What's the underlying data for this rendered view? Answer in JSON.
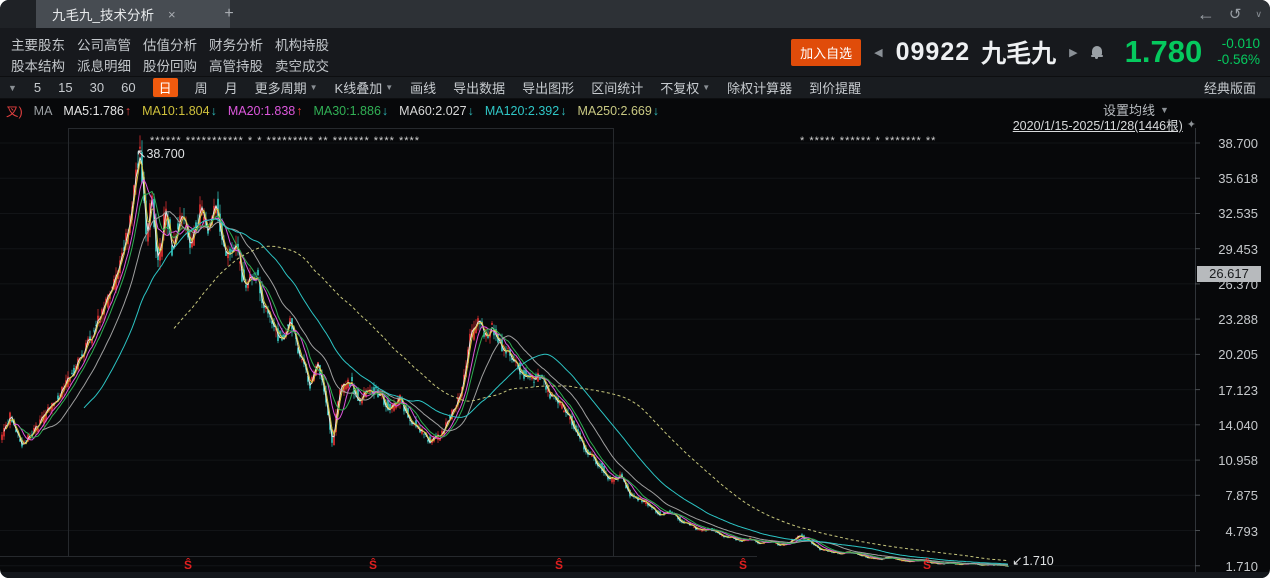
{
  "window": {
    "tab_title": "九毛九_技术分析",
    "close_icon": "×",
    "new_tab_icon": "+",
    "back_icon": "←",
    "undo_icon": "↺",
    "chevron_icon": "∨"
  },
  "menu": {
    "row1": [
      "主要股东",
      "公司高管",
      "估值分析",
      "财务分析",
      "机构持股"
    ],
    "row2": [
      "股本结构",
      "派息明细",
      "股份回购",
      "高管持股",
      "卖空成交"
    ]
  },
  "quote": {
    "add_watchlist": "加入自选",
    "prev_icon": "◀",
    "code": "09922",
    "name": "九毛九",
    "next_icon": "▶",
    "price": "1.780",
    "change": "-0.010",
    "change_pct": "-0.56%",
    "up_down_color": "#05c95e"
  },
  "toolbar": {
    "lead_icon": "▼",
    "items": [
      {
        "label": "5"
      },
      {
        "label": "15"
      },
      {
        "label": "30"
      },
      {
        "label": "60"
      },
      {
        "label": "日",
        "active": true
      },
      {
        "label": "周"
      },
      {
        "label": "月"
      },
      {
        "label": "更多周期",
        "dropdown": true
      },
      {
        "label": "K线叠加",
        "dropdown": true
      },
      {
        "label": "画线"
      },
      {
        "label": "导出数据"
      },
      {
        "label": "导出图形"
      },
      {
        "label": "区间统计"
      },
      {
        "label": "不复权",
        "dropdown": true
      },
      {
        "label": "除权计算器"
      },
      {
        "label": "到价提醒"
      }
    ],
    "dropdown_glyph": "▼",
    "right_label": "经典版面",
    "active_bg": "#ef5a0e"
  },
  "indicators": {
    "prefix": "叉)",
    "group": "MA",
    "up_glyph": "↑",
    "down_glyph": "↓",
    "items": [
      {
        "text": "MA5:1.786",
        "dir": "up",
        "color": "#e6e6e6"
      },
      {
        "text": "MA10:1.804",
        "dir": "down",
        "color": "#cfc13c"
      },
      {
        "text": "MA20:1.838",
        "dir": "up",
        "color": "#dc57dc"
      },
      {
        "text": "MA30:1.886",
        "dir": "down",
        "color": "#31b055"
      },
      {
        "text": "MA60:2.027",
        "dir": "down",
        "color": "#d8d8d8"
      },
      {
        "text": "MA120:2.392",
        "dir": "down",
        "color": "#2fc6c6"
      },
      {
        "text": "MA250:2.669",
        "dir": "down",
        "color": "#c8c882"
      }
    ]
  },
  "chart": {
    "settings_label": "设置均线",
    "date_range": "2020/1/15-2025/11/28(1446根)",
    "pin_icon": "✦",
    "peak_annotation": "↖38.700",
    "last_annotation": "↙1.710",
    "axis_badge": "26.617",
    "axis_labels": [
      "38.700",
      "35.618",
      "32.535",
      "29.453",
      "26.370",
      "23.288",
      "20.205",
      "17.123",
      "14.040",
      "10.958",
      "7.875",
      "4.793",
      "1.710"
    ],
    "event_glyph": "Ŝ",
    "event_markers": [
      {
        "x": 188
      },
      {
        "x": 373
      },
      {
        "x": 559
      },
      {
        "x": 743
      },
      {
        "x": 927
      }
    ],
    "masked_annotations": [
      {
        "x": 150,
        "text": "****** *********** * * ********* ** ******* **** ****"
      },
      {
        "x": 800,
        "text": "* ***** ****** * ******* **"
      }
    ]
  },
  "chart_data": {
    "type": "candlestick",
    "symbol": "09922 九毛九",
    "period": "日",
    "date_range": "2020/1/15-2025/11/28",
    "bars": 1446,
    "ylim": [
      1.71,
      38.7
    ],
    "y_ticks": [
      38.7,
      35.618,
      32.535,
      29.453,
      26.37,
      23.288,
      20.205,
      17.123,
      14.04,
      10.958,
      7.875,
      4.793,
      1.71
    ],
    "peak_price": 38.7,
    "last_price": 1.71,
    "ma": {
      "MA5": 1.786,
      "MA10": 1.804,
      "MA20": 1.838,
      "MA30": 1.886,
      "MA60": 2.027,
      "MA120": 2.392,
      "MA250": 2.669
    },
    "ma_lines": [
      {
        "name": "MA5",
        "window": 5,
        "color": "#e8e8e8"
      },
      {
        "name": "MA10",
        "window": 10,
        "color": "#d2c43c"
      },
      {
        "name": "MA20",
        "window": 20,
        "color": "#dd55dd"
      },
      {
        "name": "MA30",
        "window": 30,
        "color": "#2fae52"
      },
      {
        "name": "MA60",
        "window": 60,
        "color": "#9f9f9f"
      },
      {
        "name": "MA120",
        "window": 120,
        "color": "#2cc4c4"
      },
      {
        "name": "MA250",
        "window": 250,
        "color": "#c6c67c",
        "dashed": true
      }
    ],
    "colors": {
      "up": "#ee3232",
      "down": "#39d1c9",
      "grid": "#26292d",
      "grid_faint": "#121417",
      "axis": "#303439",
      "tick": "#4a4e52"
    },
    "price_path": [
      [
        2,
        13.0
      ],
      [
        10,
        14.8
      ],
      [
        22,
        12.3
      ],
      [
        35,
        13.6
      ],
      [
        50,
        15.5
      ],
      [
        65,
        17.5
      ],
      [
        80,
        20.0
      ],
      [
        95,
        22.5
      ],
      [
        105,
        24.5
      ],
      [
        115,
        26.5
      ],
      [
        125,
        30.0
      ],
      [
        132,
        33.5
      ],
      [
        140,
        38.7
      ],
      [
        146,
        30.5
      ],
      [
        152,
        34.0
      ],
      [
        158,
        27.8
      ],
      [
        165,
        32.9
      ],
      [
        172,
        29.5
      ],
      [
        180,
        32.4
      ],
      [
        190,
        29.8
      ],
      [
        200,
        32.8
      ],
      [
        210,
        31.0
      ],
      [
        216,
        33.4
      ],
      [
        225,
        28.5
      ],
      [
        235,
        30.0
      ],
      [
        245,
        25.9
      ],
      [
        255,
        27.5
      ],
      [
        265,
        24.1
      ],
      [
        280,
        21.5
      ],
      [
        290,
        23.0
      ],
      [
        300,
        20.2
      ],
      [
        310,
        17.5
      ],
      [
        318,
        19.5
      ],
      [
        325,
        16.7
      ],
      [
        332,
        12.6
      ],
      [
        340,
        17.1
      ],
      [
        350,
        17.8
      ],
      [
        360,
        16.2
      ],
      [
        370,
        17.3
      ],
      [
        380,
        16.6
      ],
      [
        390,
        15.4
      ],
      [
        400,
        16.3
      ],
      [
        410,
        14.5
      ],
      [
        420,
        13.6
      ],
      [
        430,
        12.7
      ],
      [
        440,
        13.0
      ],
      [
        450,
        14.9
      ],
      [
        460,
        16.7
      ],
      [
        470,
        21.5
      ],
      [
        478,
        23.2
      ],
      [
        486,
        21.8
      ],
      [
        492,
        22.8
      ],
      [
        500,
        21.0
      ],
      [
        510,
        20.2
      ],
      [
        520,
        18.8
      ],
      [
        530,
        18.0
      ],
      [
        540,
        18.4
      ],
      [
        550,
        16.6
      ],
      [
        560,
        15.8
      ],
      [
        570,
        14.5
      ],
      [
        580,
        12.7
      ],
      [
        590,
        11.4
      ],
      [
        600,
        10.5
      ],
      [
        610,
        9.2
      ],
      [
        620,
        9.6
      ],
      [
        630,
        7.9
      ],
      [
        640,
        7.5
      ],
      [
        650,
        7.0
      ],
      [
        660,
        6.2
      ],
      [
        670,
        6.5
      ],
      [
        680,
        5.7
      ],
      [
        690,
        5.3
      ],
      [
        700,
        4.8
      ],
      [
        710,
        5.0
      ],
      [
        720,
        4.4
      ],
      [
        730,
        4.2
      ],
      [
        740,
        3.9
      ],
      [
        750,
        4.1
      ],
      [
        760,
        3.7
      ],
      [
        770,
        3.9
      ],
      [
        780,
        3.5
      ],
      [
        790,
        3.8
      ],
      [
        800,
        4.4
      ],
      [
        810,
        3.8
      ],
      [
        820,
        3.2
      ],
      [
        830,
        3.0
      ],
      [
        840,
        2.8
      ],
      [
        850,
        2.95
      ],
      [
        860,
        2.7
      ],
      [
        870,
        2.4
      ],
      [
        880,
        2.3
      ],
      [
        890,
        2.5
      ],
      [
        900,
        2.2
      ],
      [
        910,
        2.1
      ],
      [
        920,
        2.25
      ],
      [
        930,
        2.0
      ],
      [
        940,
        1.9
      ],
      [
        950,
        2.0
      ],
      [
        960,
        1.85
      ],
      [
        970,
        1.95
      ],
      [
        980,
        1.8
      ],
      [
        990,
        1.85
      ],
      [
        1000,
        1.78
      ],
      [
        1010,
        1.71
      ]
    ]
  }
}
